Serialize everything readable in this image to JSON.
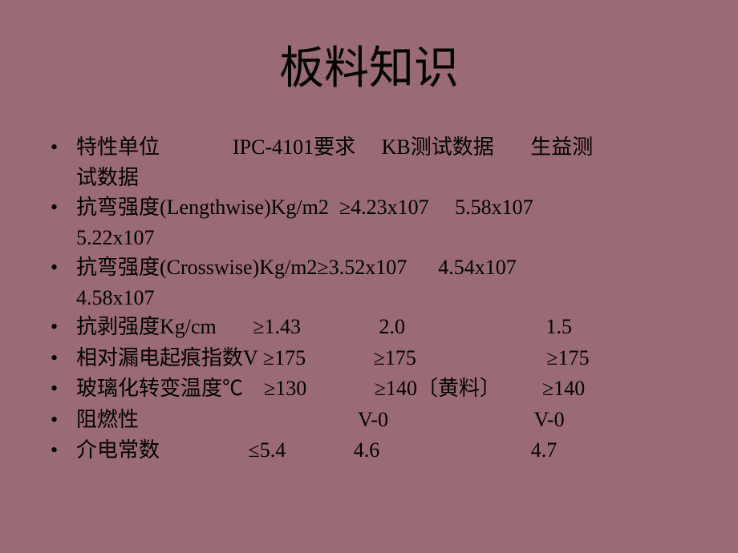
{
  "slide": {
    "title": "板料知识",
    "background_color": "#9b6b75",
    "title_color": "#000000",
    "text_color": "#000000",
    "title_fontsize": 56,
    "body_fontsize": 26,
    "bullet_marker": "•",
    "bullets": [
      {
        "line1": "特性单位              IPC-4101要求     KB测试数据       生益测",
        "line2": "试数据"
      },
      {
        "line1": "抗弯强度(Lengthwise)Kg/m2  ≥4.23x107     5.58x107",
        "line2": "5.22x107"
      },
      {
        "line1": "抗弯强度(Crosswise)Kg/m2≥3.52x107      4.54x107",
        "line2": "4.58x107"
      },
      {
        "line1": "抗剥强度Kg/cm       ≥1.43               2.0                           1.5",
        "line2": null
      },
      {
        "line1": "相对漏电起痕指数V ≥175             ≥175                         ≥175",
        "line2": null
      },
      {
        "line1": "玻璃化转变温度℃    ≥130             ≥140〔黄料〕        ≥140",
        "line2": null
      },
      {
        "line1": "阻燃性                                          V-0                            V-0",
        "line2": null
      },
      {
        "line1": "介电常数                 ≤5.4             4.6                             4.7",
        "line2": null
      }
    ]
  }
}
